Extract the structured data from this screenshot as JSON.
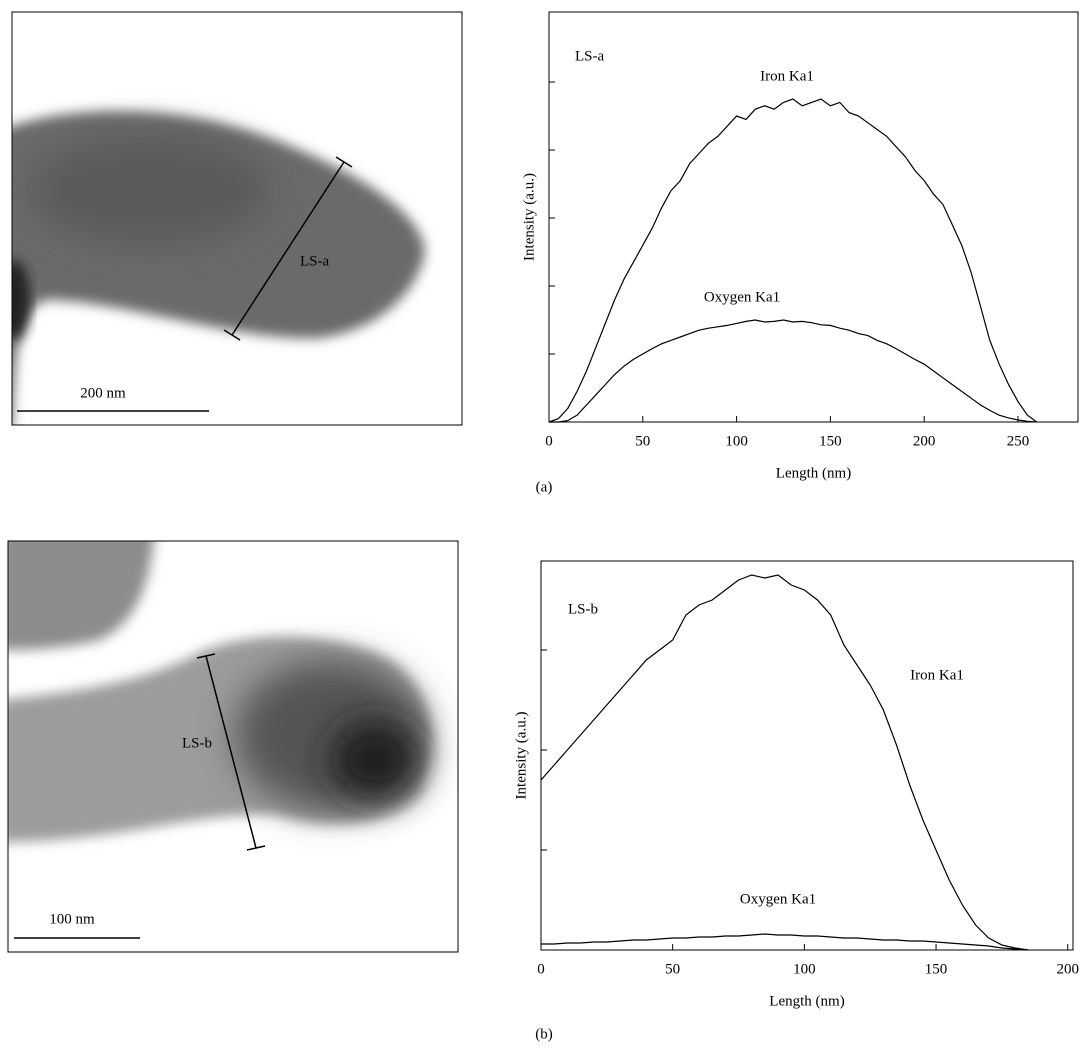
{
  "chart_data": [
    {
      "type": "line",
      "x_label": "Length (nm)",
      "y_label": "Intensity (a.u.)",
      "annotations": [
        "LS-a"
      ],
      "x": [
        0,
        5,
        10,
        15,
        20,
        25,
        30,
        35,
        40,
        45,
        50,
        55,
        60,
        65,
        70,
        75,
        80,
        85,
        90,
        95,
        100,
        105,
        110,
        115,
        120,
        125,
        130,
        135,
        140,
        145,
        150,
        155,
        160,
        165,
        170,
        175,
        180,
        185,
        190,
        195,
        200,
        205,
        210,
        215,
        220,
        225,
        230,
        235,
        240,
        245,
        250,
        255,
        260
      ],
      "series": [
        {
          "name": "Iron Ka1",
          "color": "#000000",
          "values": [
            0,
            0.05,
            0.2,
            0.45,
            0.75,
            1.1,
            1.45,
            1.8,
            2.1,
            2.35,
            2.6,
            2.85,
            3.15,
            3.4,
            3.55,
            3.8,
            3.95,
            4.1,
            4.2,
            4.35,
            4.5,
            4.45,
            4.6,
            4.65,
            4.6,
            4.7,
            4.75,
            4.65,
            4.7,
            4.75,
            4.65,
            4.7,
            4.55,
            4.5,
            4.4,
            4.3,
            4.2,
            4.05,
            3.9,
            3.7,
            3.55,
            3.35,
            3.2,
            2.9,
            2.6,
            2.2,
            1.7,
            1.2,
            0.85,
            0.55,
            0.3,
            0.1,
            0
          ]
        },
        {
          "name": "Oxygen Ka1",
          "color": "#000000",
          "values": [
            0,
            0,
            0.02,
            0.1,
            0.25,
            0.4,
            0.55,
            0.7,
            0.82,
            0.92,
            1.0,
            1.08,
            1.15,
            1.2,
            1.25,
            1.3,
            1.35,
            1.38,
            1.4,
            1.42,
            1.45,
            1.48,
            1.5,
            1.47,
            1.48,
            1.5,
            1.47,
            1.48,
            1.46,
            1.43,
            1.42,
            1.38,
            1.35,
            1.3,
            1.27,
            1.2,
            1.15,
            1.08,
            1.0,
            0.92,
            0.85,
            0.75,
            0.65,
            0.55,
            0.45,
            0.35,
            0.25,
            0.17,
            0.1,
            0.06,
            0.03,
            0.01,
            0
          ]
        }
      ],
      "xlim": [
        0,
        282
      ],
      "xticks": [
        0,
        50,
        100,
        150,
        200,
        250
      ],
      "ylim": [
        0,
        6.03
      ],
      "yticks": [
        1,
        2,
        3,
        4,
        5
      ]
    },
    {
      "type": "line",
      "x_label": "Length (nm)",
      "y_label": "Intensity (a.u.)",
      "annotations": [
        "LS-b"
      ],
      "x": [
        0,
        5,
        10,
        15,
        20,
        25,
        30,
        35,
        40,
        45,
        50,
        55,
        60,
        65,
        70,
        75,
        80,
        85,
        90,
        95,
        100,
        105,
        110,
        115,
        120,
        125,
        130,
        135,
        140,
        145,
        150,
        155,
        160,
        165,
        170,
        175,
        180,
        185
      ],
      "series": [
        {
          "name": "Iron Ka1",
          "color": "#000000",
          "values": [
            1.7,
            1.85,
            2.0,
            2.15,
            2.3,
            2.45,
            2.6,
            2.75,
            2.9,
            3.0,
            3.1,
            3.35,
            3.45,
            3.5,
            3.6,
            3.7,
            3.75,
            3.72,
            3.75,
            3.65,
            3.6,
            3.5,
            3.35,
            3.05,
            2.85,
            2.65,
            2.4,
            2.05,
            1.65,
            1.3,
            1.0,
            0.7,
            0.45,
            0.25,
            0.12,
            0.05,
            0.02,
            0
          ]
        },
        {
          "name": "Oxygen Ka1",
          "color": "#000000",
          "values": [
            0.06,
            0.06,
            0.07,
            0.07,
            0.08,
            0.08,
            0.09,
            0.1,
            0.1,
            0.11,
            0.12,
            0.12,
            0.13,
            0.13,
            0.14,
            0.14,
            0.15,
            0.16,
            0.15,
            0.15,
            0.14,
            0.14,
            0.13,
            0.12,
            0.12,
            0.11,
            0.1,
            0.1,
            0.09,
            0.09,
            0.08,
            0.07,
            0.06,
            0.05,
            0.04,
            0.02,
            0.01,
            0
          ]
        }
      ],
      "xlim": [
        0,
        202
      ],
      "xticks": [
        0,
        50,
        100,
        150,
        200
      ],
      "ylim": [
        0,
        3.89
      ],
      "yticks": [
        1,
        2,
        3
      ]
    }
  ],
  "images": [
    {
      "line_label": "LS-a",
      "scale_bar": "200 nm"
    },
    {
      "line_label": "LS-b",
      "scale_bar": "100 nm"
    }
  ],
  "captions": [
    "(a)",
    "(b)"
  ]
}
